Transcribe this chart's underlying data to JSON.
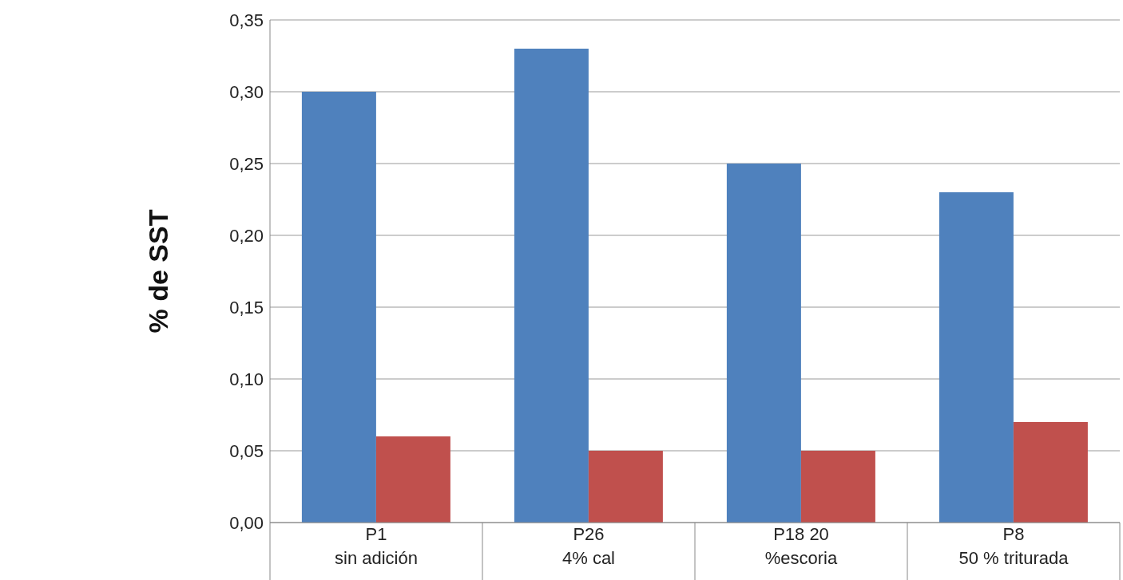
{
  "chart_data": {
    "type": "bar",
    "ylabel": "% de SST",
    "categories": [
      "P1\nsin adición",
      "P26\n4% cal",
      "P18  20\n%escoria",
      "P8\n50 % triturada"
    ],
    "series": [
      {
        "color": "#4f81bd",
        "values": [
          0.3,
          0.33,
          0.25,
          0.23
        ]
      },
      {
        "color": "#c0504d",
        "values": [
          0.06,
          0.05,
          0.05,
          0.07
        ]
      }
    ],
    "ylim": [
      0,
      0.35
    ],
    "yticks": [
      {
        "value": 0,
        "label": "0,00"
      },
      {
        "value": 0.05,
        "label": "0,05"
      },
      {
        "value": 0.1,
        "label": "0,10"
      },
      {
        "value": 0.15,
        "label": "0,15"
      },
      {
        "value": 0.2,
        "label": "0,20"
      },
      {
        "value": 0.25,
        "label": "0,25"
      },
      {
        "value": 0.3,
        "label": "0,30"
      },
      {
        "value": 0.35,
        "label": "0,35"
      }
    ],
    "grid": "y",
    "legend": false
  }
}
